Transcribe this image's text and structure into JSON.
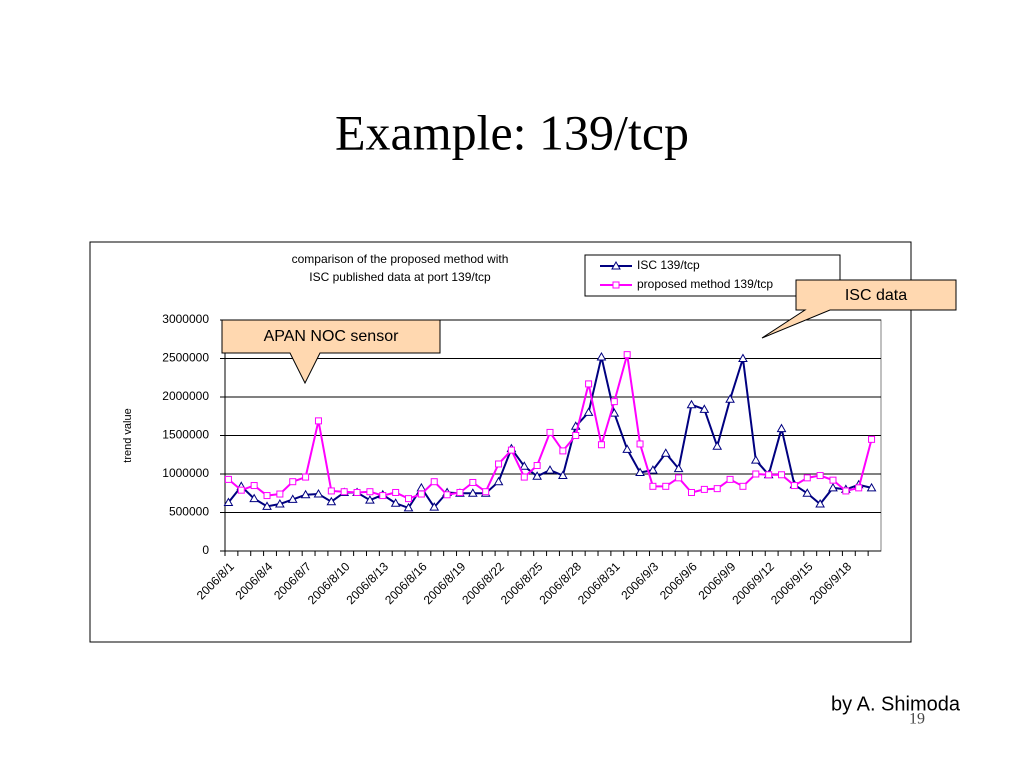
{
  "slide": {
    "title": "Example: 139/tcp",
    "callouts": [
      "APAN NOC sensor",
      "ISC data"
    ],
    "footer": "by A. Shimoda",
    "page_number": "19"
  },
  "chart_data": {
    "type": "line",
    "title_lines": [
      "comparison of the proposed method with",
      "ISC published data at port 139/tcp"
    ],
    "y_label": "trend value",
    "categories": [
      "2006/8/1",
      null,
      null,
      "2006/8/4",
      null,
      null,
      "2006/8/7",
      null,
      null,
      "2006/8/10",
      null,
      null,
      "2006/8/13",
      null,
      null,
      "2006/8/16",
      null,
      null,
      "2006/8/19",
      null,
      null,
      "2006/8/22",
      null,
      null,
      "2006/8/25",
      null,
      null,
      "2006/8/28",
      null,
      null,
      "2006/8/31",
      null,
      null,
      "2006/9/3",
      null,
      null,
      "2006/9/6",
      null,
      null,
      "2006/9/9",
      null,
      null,
      "2006/9/12",
      null,
      null,
      "2006/9/15",
      null,
      null,
      "2006/9/18",
      null,
      null
    ],
    "series": [
      {
        "name": "ISC 139/tcp",
        "color": "#000080",
        "marker": "triangle",
        "values": [
          630000,
          840000,
          680000,
          580000,
          610000,
          670000,
          730000,
          740000,
          640000,
          760000,
          760000,
          660000,
          730000,
          620000,
          560000,
          820000,
          570000,
          760000,
          750000,
          750000,
          750000,
          900000,
          1330000,
          1100000,
          970000,
          1050000,
          980000,
          1620000,
          1800000,
          2520000,
          1790000,
          1320000,
          1020000,
          1050000,
          1270000,
          1070000,
          1900000,
          1840000,
          1360000,
          1970000,
          2500000,
          1180000,
          990000,
          1590000,
          860000,
          750000,
          610000,
          820000,
          800000,
          860000,
          820000
        ]
      },
      {
        "name": "proposed method 139/tcp",
        "color": "#ff00ff",
        "marker": "square",
        "values": [
          930000,
          790000,
          850000,
          720000,
          740000,
          900000,
          960000,
          1690000,
          780000,
          770000,
          760000,
          770000,
          720000,
          760000,
          680000,
          740000,
          900000,
          730000,
          760000,
          890000,
          770000,
          1130000,
          1310000,
          960000,
          1110000,
          1540000,
          1300000,
          1500000,
          2170000,
          1380000,
          1940000,
          2550000,
          1390000,
          840000,
          840000,
          950000,
          760000,
          800000,
          810000,
          930000,
          840000,
          1000000,
          990000,
          990000,
          850000,
          950000,
          980000,
          920000,
          780000,
          820000,
          1450000
        ]
      }
    ],
    "ylim": [
      0,
      3000000
    ],
    "yticks": [
      0,
      500000,
      1000000,
      1500000,
      2000000,
      2500000,
      3000000
    ],
    "grid": true
  }
}
